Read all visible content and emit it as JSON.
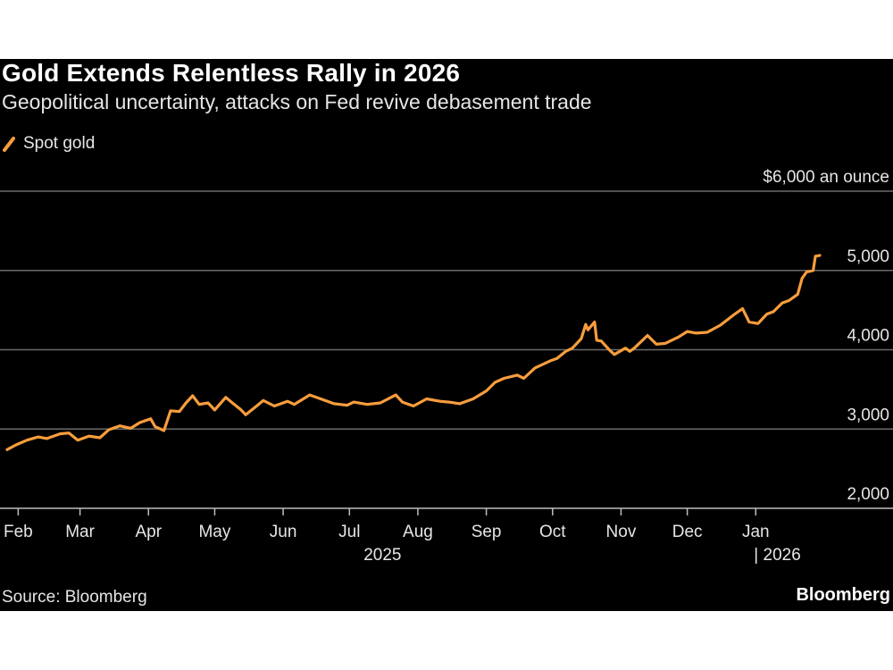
{
  "colors": {
    "background": "#000000",
    "series": "#f79d3d",
    "grid": "#6b6b6b",
    "text": "#e6e6e6"
  },
  "title": "Gold Extends Relentless Rally in 2026",
  "subtitle": "Geopolitical uncertainty, attacks on Fed revive debasement trade",
  "legend_label": "Spot gold",
  "source": "Source: Bloomberg",
  "brand": "Bloomberg",
  "chart_data": {
    "type": "line",
    "title": "Gold Extends Relentless Rally in 2026",
    "subtitle": "Geopolitical uncertainty, attacks on Fed revive debasement trade",
    "unit_label": "$6,000 an ounce",
    "ylim": [
      2000,
      6000
    ],
    "y_ticks": [
      2000,
      3000,
      4000,
      5000,
      6000
    ],
    "y_tick_labels": [
      "2,000",
      "3,000",
      "4,000",
      "5,000",
      "$6,000 an ounce"
    ],
    "x_range": [
      "2025-01-27",
      "2026-01-30"
    ],
    "x_tick_labels": [
      {
        "date": "2025-02-01",
        "label": "Feb"
      },
      {
        "date": "2025-03-01",
        "label": "Mar"
      },
      {
        "date": "2025-04-01",
        "label": "Apr"
      },
      {
        "date": "2025-05-01",
        "label": "May"
      },
      {
        "date": "2025-06-01",
        "label": "Jun"
      },
      {
        "date": "2025-07-01",
        "label": "Jul"
      },
      {
        "date": "2025-08-01",
        "label": "Aug"
      },
      {
        "date": "2025-09-01",
        "label": "Sep"
      },
      {
        "date": "2025-10-01",
        "label": "Oct"
      },
      {
        "date": "2025-11-01",
        "label": "Nov"
      },
      {
        "date": "2025-12-01",
        "label": "Dec"
      },
      {
        "date": "2026-01-01",
        "label": "Jan"
      }
    ],
    "year_labels": [
      {
        "label": "2025",
        "center": "2025-07-16"
      },
      {
        "label": "| 2026",
        "start": "2026-01-01"
      }
    ],
    "grid": true,
    "legend_position": "top-left",
    "series": [
      {
        "name": "Spot gold",
        "color": "#f79d3d",
        "points": [
          [
            "2025-01-27",
            2740
          ],
          [
            "2025-01-31",
            2800
          ],
          [
            "2025-02-05",
            2860
          ],
          [
            "2025-02-10",
            2900
          ],
          [
            "2025-02-14",
            2880
          ],
          [
            "2025-02-20",
            2940
          ],
          [
            "2025-02-24",
            2950
          ],
          [
            "2025-02-28",
            2860
          ],
          [
            "2025-03-05",
            2910
          ],
          [
            "2025-03-10",
            2890
          ],
          [
            "2025-03-14",
            2990
          ],
          [
            "2025-03-19",
            3040
          ],
          [
            "2025-03-24",
            3010
          ],
          [
            "2025-03-28",
            3080
          ],
          [
            "2025-04-02",
            3130
          ],
          [
            "2025-04-04",
            3030
          ],
          [
            "2025-04-08",
            2980
          ],
          [
            "2025-04-11",
            3230
          ],
          [
            "2025-04-15",
            3220
          ],
          [
            "2025-04-18",
            3330
          ],
          [
            "2025-04-21",
            3420
          ],
          [
            "2025-04-24",
            3310
          ],
          [
            "2025-04-28",
            3330
          ],
          [
            "2025-05-01",
            3240
          ],
          [
            "2025-05-06",
            3400
          ],
          [
            "2025-05-09",
            3330
          ],
          [
            "2025-05-13",
            3240
          ],
          [
            "2025-05-15",
            3180
          ],
          [
            "2025-05-20",
            3290
          ],
          [
            "2025-05-23",
            3360
          ],
          [
            "2025-05-28",
            3290
          ],
          [
            "2025-06-03",
            3350
          ],
          [
            "2025-06-06",
            3310
          ],
          [
            "2025-06-13",
            3430
          ],
          [
            "2025-06-18",
            3380
          ],
          [
            "2025-06-24",
            3320
          ],
          [
            "2025-06-30",
            3300
          ],
          [
            "2025-07-03",
            3340
          ],
          [
            "2025-07-09",
            3310
          ],
          [
            "2025-07-15",
            3330
          ],
          [
            "2025-07-22",
            3430
          ],
          [
            "2025-07-25",
            3340
          ],
          [
            "2025-07-30",
            3290
          ],
          [
            "2025-08-05",
            3380
          ],
          [
            "2025-08-11",
            3350
          ],
          [
            "2025-08-15",
            3340
          ],
          [
            "2025-08-20",
            3320
          ],
          [
            "2025-08-26",
            3380
          ],
          [
            "2025-09-01",
            3480
          ],
          [
            "2025-09-05",
            3590
          ],
          [
            "2025-09-09",
            3640
          ],
          [
            "2025-09-15",
            3680
          ],
          [
            "2025-09-18",
            3640
          ],
          [
            "2025-09-23",
            3770
          ],
          [
            "2025-09-30",
            3860
          ],
          [
            "2025-10-03",
            3890
          ],
          [
            "2025-10-07",
            3980
          ],
          [
            "2025-10-10",
            4020
          ],
          [
            "2025-10-14",
            4140
          ],
          [
            "2025-10-16",
            4320
          ],
          [
            "2025-10-17",
            4250
          ],
          [
            "2025-10-20",
            4350
          ],
          [
            "2025-10-21",
            4120
          ],
          [
            "2025-10-23",
            4110
          ],
          [
            "2025-10-27",
            3990
          ],
          [
            "2025-10-29",
            3940
          ],
          [
            "2025-11-03",
            4020
          ],
          [
            "2025-11-05",
            3980
          ],
          [
            "2025-11-07",
            4020
          ],
          [
            "2025-11-13",
            4180
          ],
          [
            "2025-11-17",
            4070
          ],
          [
            "2025-11-21",
            4080
          ],
          [
            "2025-11-27",
            4160
          ],
          [
            "2025-12-01",
            4230
          ],
          [
            "2025-12-05",
            4210
          ],
          [
            "2025-12-10",
            4220
          ],
          [
            "2025-12-16",
            4310
          ],
          [
            "2025-12-22",
            4440
          ],
          [
            "2025-12-26",
            4520
          ],
          [
            "2025-12-29",
            4350
          ],
          [
            "2026-01-02",
            4330
          ],
          [
            "2026-01-06",
            4450
          ],
          [
            "2026-01-09",
            4480
          ],
          [
            "2026-01-13",
            4590
          ],
          [
            "2026-01-16",
            4620
          ],
          [
            "2026-01-20",
            4700
          ],
          [
            "2026-01-22",
            4900
          ],
          [
            "2026-01-24",
            4980
          ],
          [
            "2026-01-27",
            5000
          ],
          [
            "2026-01-28",
            5180
          ],
          [
            "2026-01-30",
            5190
          ]
        ]
      }
    ]
  }
}
